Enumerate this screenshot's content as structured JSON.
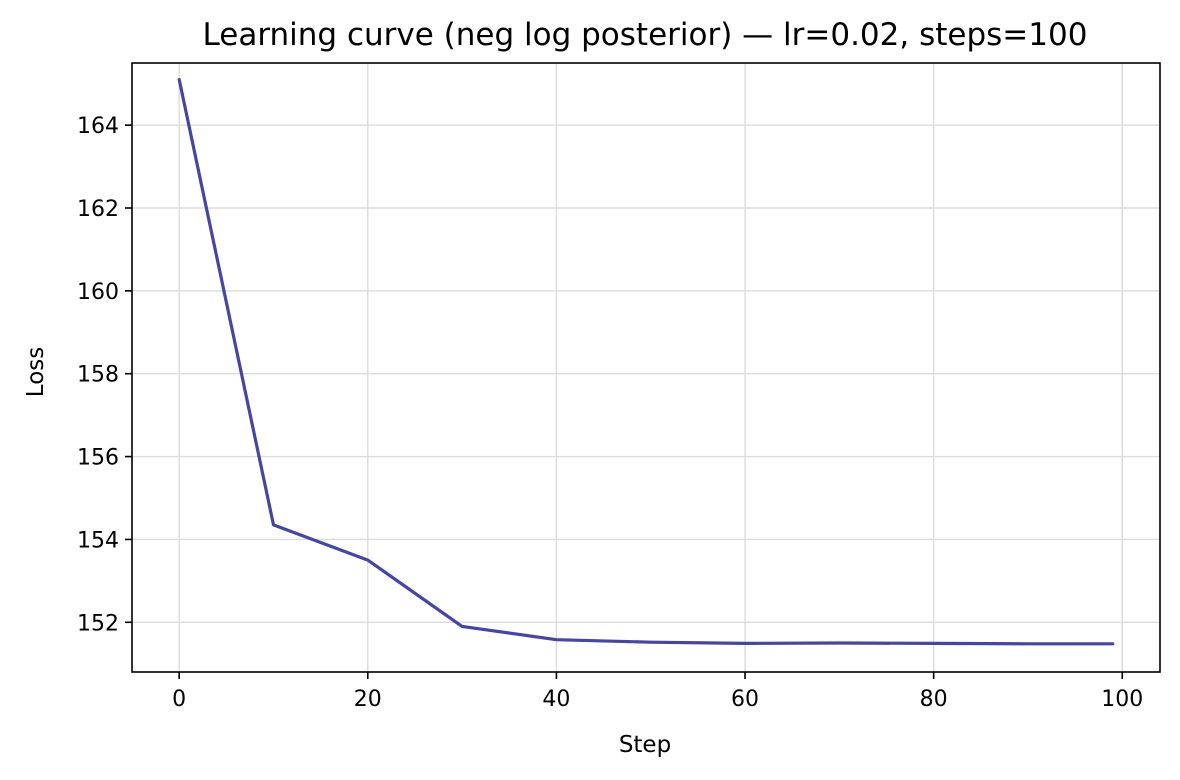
{
  "chart_data": {
    "type": "line",
    "title": "Learning curve (neg log posterior) — lr=0.02, steps=100",
    "xlabel": "Step",
    "ylabel": "Loss",
    "xlim": [
      -5,
      104
    ],
    "ylim": [
      150.8,
      165.5
    ],
    "xticks": [
      0,
      20,
      40,
      60,
      80,
      100
    ],
    "yticks": [
      152,
      154,
      156,
      158,
      160,
      162,
      164
    ],
    "grid": true,
    "series": [
      {
        "color": "#4444aa",
        "x": [
          0,
          10,
          20,
          30,
          40,
          50,
          60,
          70,
          80,
          90,
          99
        ],
        "y": [
          165.1,
          154.35,
          153.5,
          151.9,
          151.58,
          151.52,
          151.49,
          151.5,
          151.49,
          151.48,
          151.48
        ]
      }
    ]
  }
}
